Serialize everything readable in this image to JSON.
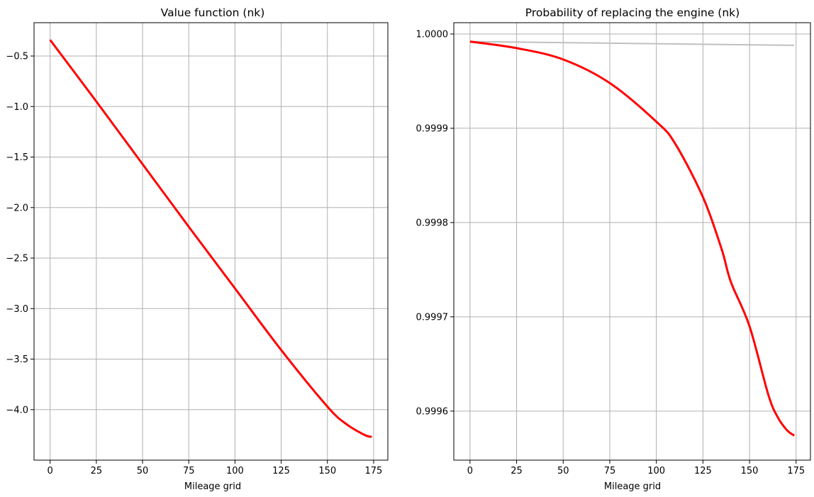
{
  "chart_data": [
    {
      "type": "line",
      "title": "Value function (nk)",
      "xlabel": "Mileage grid",
      "ylabel": "",
      "xlim": [
        -8.7,
        182.7
      ],
      "ylim": [
        -4.5,
        -0.17
      ],
      "xticks": [
        0,
        25,
        50,
        75,
        100,
        125,
        150,
        175
      ],
      "xtick_labels": [
        "0",
        "25",
        "50",
        "75",
        "100",
        "125",
        "150",
        "175"
      ],
      "yticks": [
        -0.5,
        -1.0,
        -1.5,
        -2.0,
        -2.5,
        -3.0,
        -3.5,
        -4.0
      ],
      "ytick_labels": [
        "−0.5",
        "−1.0",
        "−1.5",
        "−2.0",
        "−2.5",
        "−3.0",
        "−3.5",
        "−4.0"
      ],
      "grid": true,
      "series": [
        {
          "color": "#ff0000",
          "x": [
            0,
            25,
            50,
            75,
            100,
            125,
            150,
            160,
            170,
            174
          ],
          "y": [
            -0.34,
            -0.95,
            -1.57,
            -2.19,
            -2.8,
            -3.41,
            -3.97,
            -4.14,
            -4.25,
            -4.27
          ]
        }
      ]
    },
    {
      "type": "line",
      "title": "Probability of replacing the engine (nk)",
      "xlabel": "Mileage grid",
      "ylabel": "",
      "xlim": [
        -8.7,
        182.7
      ],
      "ylim": [
        0.999548,
        1.000012
      ],
      "xticks": [
        0,
        25,
        50,
        75,
        100,
        125,
        150,
        175
      ],
      "xtick_labels": [
        "0",
        "25",
        "50",
        "75",
        "100",
        "125",
        "150",
        "175"
      ],
      "yticks": [
        1.0,
        0.9999,
        0.9998,
        0.9997,
        0.9996
      ],
      "ytick_labels": [
        "1.0000",
        "0.9999",
        "0.9998",
        "0.9997",
        "0.9996"
      ],
      "grid": true,
      "series": [
        {
          "color": "#c0c0c0",
          "x": [
            0,
            174
          ],
          "y": [
            0.999992,
            0.999988
          ]
        },
        {
          "color": "#ff0000",
          "x": [
            0,
            25,
            50,
            75,
            100,
            110,
            125,
            135,
            140,
            150,
            160,
            165,
            170,
            174
          ],
          "y": [
            0.999992,
            0.999985,
            0.999973,
            0.999948,
            0.999907,
            0.999884,
            0.999827,
            0.999772,
            0.999737,
            0.99969,
            0.999618,
            0.999594,
            0.99958,
            0.999574
          ]
        }
      ]
    }
  ]
}
